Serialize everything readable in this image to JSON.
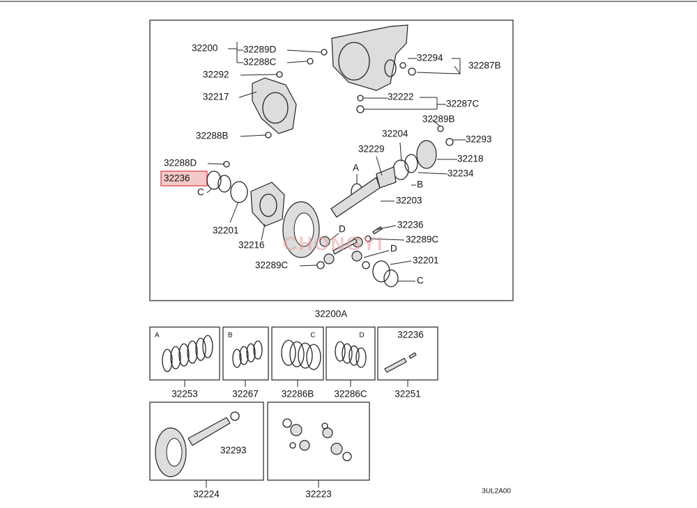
{
  "main_diagram": {
    "labels": [
      "32200",
      "32289D",
      "32288C",
      "32294",
      "32287B",
      "32292",
      "32217",
      "32222",
      "32287C",
      "32289B",
      "32293",
      "32288B",
      "32204",
      "32229",
      "32218",
      "32288D",
      "32234",
      "A",
      "32236",
      "B",
      "C",
      "32203",
      "32236",
      "32201",
      "D",
      "32216",
      "32289C",
      "D",
      "32289C",
      "32201",
      "C"
    ],
    "assembly_number": "32200A",
    "watermark": "CHONGYI"
  },
  "sub_diagrams": [
    {
      "letter": "A",
      "part_number": "32253"
    },
    {
      "letter": "B",
      "part_number": "32267"
    },
    {
      "letter": "C",
      "part_number": "32286B"
    },
    {
      "letter": "D",
      "part_number": "32286C"
    },
    {
      "letter": "32236",
      "part_number": "32251"
    }
  ],
  "lower_diagrams": [
    {
      "inner_label": "32293",
      "part_number": "32224"
    },
    {
      "part_number": "32223"
    }
  ],
  "footer_code": "3UL2A00"
}
